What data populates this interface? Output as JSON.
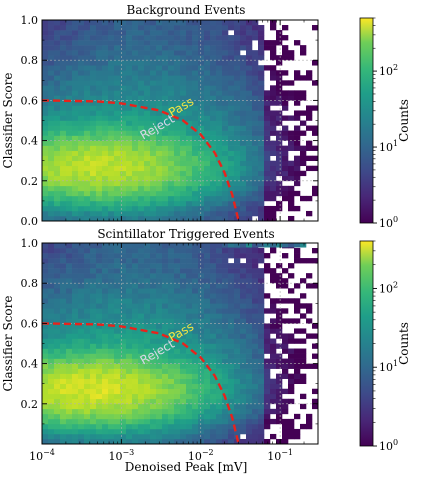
{
  "figure": {
    "shared_xlabel": "Denoised Peak [mV]",
    "colorbar_label": "Counts",
    "colormap": "viridis",
    "boundary_color": "#e8231c",
    "pass_label_color": "#f5e642",
    "reject_label_color": "#d8d8e8"
  },
  "chart_data": [
    {
      "type": "heatmap",
      "title": "Background Events",
      "xlabel": "",
      "ylabel": "Classifier Score",
      "x_scale": "log",
      "xlim": [
        0.0001,
        0.3
      ],
      "ylim": [
        0.0,
        1.0
      ],
      "x_ticks": [
        {
          "v": 0.0001,
          "b": "10",
          "e": "−4"
        },
        {
          "v": 0.001,
          "b": "10",
          "e": "−3"
        },
        {
          "v": 0.01,
          "b": "10",
          "e": "−2"
        },
        {
          "v": 0.1,
          "b": "10",
          "e": "−1"
        }
      ],
      "x_ticks_labeled": false,
      "y_ticks": [
        0.0,
        0.2,
        0.4,
        0.6,
        0.8,
        1.0
      ],
      "y_tick_labels": [
        "0.0",
        "0.2",
        "0.4",
        "0.6",
        "0.8",
        "1.0"
      ],
      "grid": true,
      "density_peak": {
        "x": 0.0005,
        "y": 0.27
      },
      "count_range": [
        1,
        500
      ],
      "boundary_curve": {
        "style": "dashed",
        "points": [
          [
            0.0001,
            0.6
          ],
          [
            0.0005,
            0.595
          ],
          [
            0.001,
            0.585
          ],
          [
            0.003,
            0.55
          ],
          [
            0.006,
            0.5
          ],
          [
            0.01,
            0.43
          ],
          [
            0.015,
            0.34
          ],
          [
            0.02,
            0.24
          ],
          [
            0.025,
            0.13
          ],
          [
            0.03,
            0.0
          ]
        ]
      },
      "annotations": [
        {
          "text": "Pass",
          "x": 0.006,
          "y": 0.55,
          "color": "#f5e642",
          "rotation": -38
        },
        {
          "text": "Reject",
          "x": 0.003,
          "y": 0.45,
          "color": "#d8d8e8",
          "rotation": -38
        }
      ],
      "colorbar": {
        "label": "Counts",
        "scale": "log",
        "range": [
          1,
          500
        ],
        "ticks": [
          {
            "v": 1,
            "b": "10",
            "e": "0"
          },
          {
            "v": 10,
            "b": "10",
            "e": "1"
          },
          {
            "v": 100,
            "b": "10",
            "e": "2"
          }
        ]
      }
    },
    {
      "type": "heatmap",
      "title": "Scintillator Triggered Events",
      "xlabel": "Denoised Peak [mV]",
      "ylabel": "Classifier Score",
      "x_scale": "log",
      "xlim": [
        0.0001,
        0.3
      ],
      "ylim": [
        0.0,
        1.0
      ],
      "x_ticks": [
        {
          "v": 0.0001,
          "b": "10",
          "e": "−4"
        },
        {
          "v": 0.001,
          "b": "10",
          "e": "−3"
        },
        {
          "v": 0.01,
          "b": "10",
          "e": "−2"
        },
        {
          "v": 0.1,
          "b": "10",
          "e": "−1"
        }
      ],
      "x_ticks_labeled": true,
      "y_ticks": [
        0.2,
        0.4,
        0.6,
        0.8,
        1.0
      ],
      "y_tick_labels": [
        "0.2",
        "0.4",
        "0.6",
        "0.8",
        "1.0"
      ],
      "grid": true,
      "density_peak": {
        "x": 0.0004,
        "y": 0.27
      },
      "count_range": [
        1,
        400
      ],
      "boundary_curve": {
        "style": "dashed",
        "points": [
          [
            0.0001,
            0.6
          ],
          [
            0.0005,
            0.595
          ],
          [
            0.001,
            0.585
          ],
          [
            0.003,
            0.55
          ],
          [
            0.006,
            0.5
          ],
          [
            0.01,
            0.43
          ],
          [
            0.015,
            0.34
          ],
          [
            0.02,
            0.24
          ],
          [
            0.025,
            0.13
          ],
          [
            0.03,
            0.0
          ]
        ]
      },
      "annotations": [
        {
          "text": "Pass",
          "x": 0.006,
          "y": 0.54,
          "color": "#f5e642",
          "rotation": -38
        },
        {
          "text": "Reject",
          "x": 0.003,
          "y": 0.44,
          "color": "#d8d8e8",
          "rotation": -38
        }
      ],
      "colorbar": {
        "label": "Counts",
        "scale": "log",
        "range": [
          1,
          400
        ],
        "ticks": [
          {
            "v": 1,
            "b": "10",
            "e": "0"
          },
          {
            "v": 10,
            "b": "10",
            "e": "1"
          },
          {
            "v": 100,
            "b": "10",
            "e": "2"
          }
        ]
      }
    }
  ]
}
